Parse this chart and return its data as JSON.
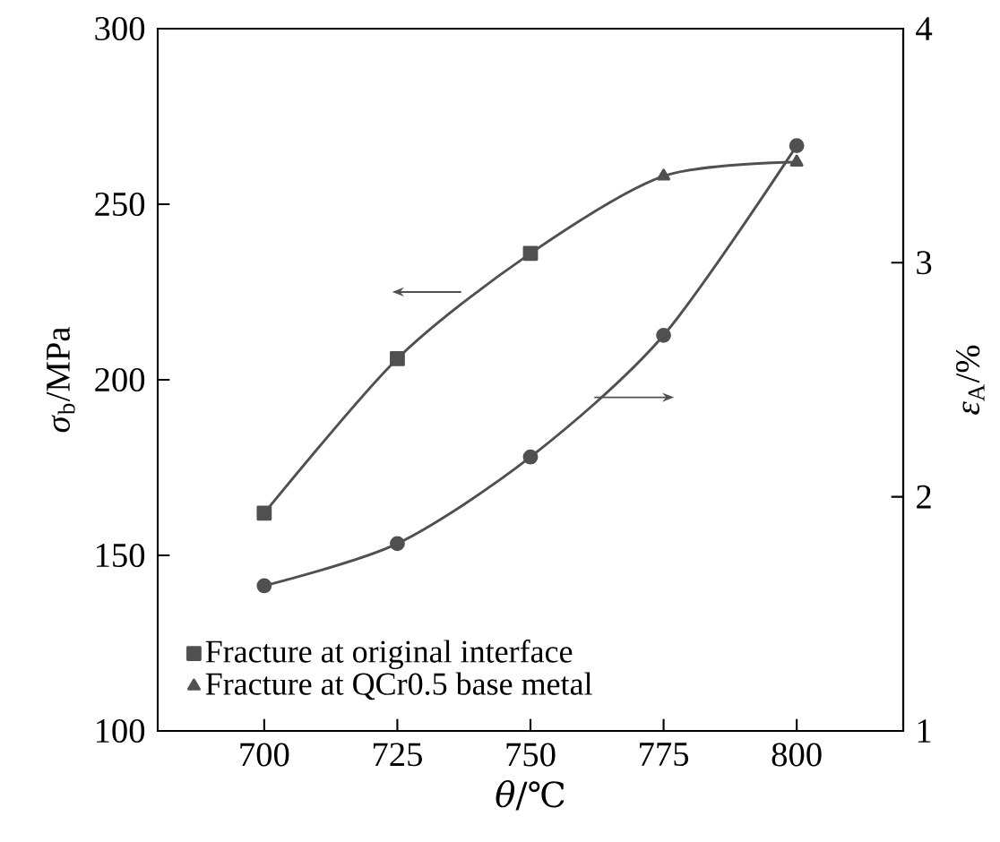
{
  "chart_data": {
    "type": "line",
    "xlabel": "*θ*/℃",
    "ylabel": "*σ*$_{b}$/MPa",
    "y2label": "*ε*$_{A}$/%",
    "x": [
      700,
      725,
      750,
      775,
      800
    ],
    "xlim": [
      680,
      820
    ],
    "xticks": [
      700,
      725,
      750,
      775,
      800
    ],
    "ylim": [
      100,
      300
    ],
    "yticks": [
      100,
      150,
      200,
      250,
      300
    ],
    "y2lim": [
      1,
      4
    ],
    "y2ticks": [
      1,
      2,
      3,
      4
    ],
    "legend": "bottom left",
    "series": [
      {
        "type": "line",
        "marker": "none",
        "color": "#505050",
        "values": [
          162,
          206,
          236,
          258,
          262
        ]
      },
      {
        "name": "Fracture at original interface",
        "type": "scatter",
        "marker": "square",
        "color": "#505050",
        "x": [
          700,
          725,
          750
        ],
        "values": [
          162,
          206,
          236
        ]
      },
      {
        "name": "Fracture at QCr0.5 base metal",
        "type": "scatter",
        "marker": "triangle",
        "color": "#505050",
        "x": [
          775,
          800
        ],
        "values": [
          258,
          262
        ]
      },
      {
        "type": "line",
        "axis": "y2",
        "marker": "circle",
        "color": "#505050",
        "values": [
          1.62,
          1.8,
          2.17,
          2.69,
          3.5
        ]
      }
    ]
  }
}
